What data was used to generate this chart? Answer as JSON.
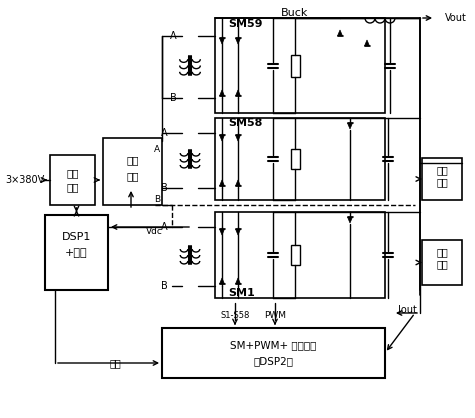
{
  "bg_color": "#ffffff",
  "line_color": "#000000",
  "figsize": [
    4.75,
    4.18
  ],
  "dpi": 100,
  "labels": {
    "three_phase": "3×380V",
    "rectifier_line1": "整流",
    "rectifier_line2": "滤波",
    "inverter_line1": "全桥",
    "inverter_line2": "逆变",
    "buck": "Buck",
    "sm59": "SM59",
    "sm58": "SM58",
    "sm1": "SM1",
    "dsp1_line1": "DSP1",
    "dsp1_line2": "+驱动",
    "voltage_sample_line1": "电压",
    "voltage_sample_line2": "取样",
    "current_sample_line1": "电流",
    "current_sample_line2": "取样",
    "dsp2_line1": "SM+PWM+ 光纤驱动",
    "dsp2_line2": "（DSP2）",
    "vout": "Vout",
    "iout": "Iout",
    "vdc": "Vdc",
    "comms": "通讯",
    "s1s58": "S1-S58",
    "pwm": "PWM",
    "A": "A",
    "B": "B"
  }
}
